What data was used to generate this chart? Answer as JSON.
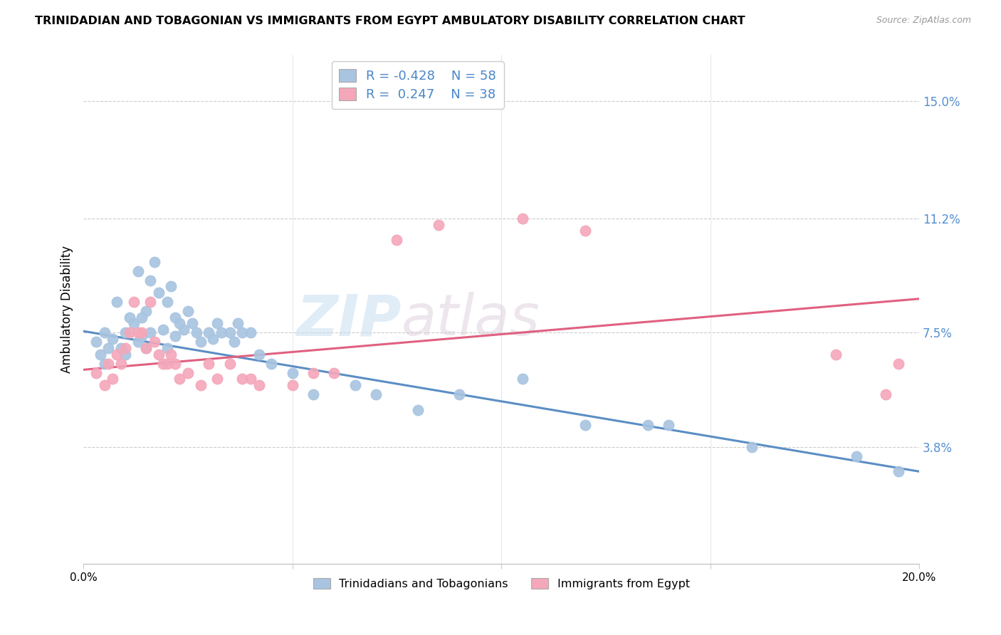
{
  "title": "TRINIDADIAN AND TOBAGONIAN VS IMMIGRANTS FROM EGYPT AMBULATORY DISABILITY CORRELATION CHART",
  "source": "Source: ZipAtlas.com",
  "ylabel": "Ambulatory Disability",
  "yticks": [
    3.8,
    7.5,
    11.2,
    15.0
  ],
  "xlim": [
    0.0,
    20.0
  ],
  "ylim": [
    0.0,
    16.5
  ],
  "legend_blue_R": "-0.428",
  "legend_blue_N": "58",
  "legend_pink_R": "0.247",
  "legend_pink_N": "38",
  "blue_color": "#a8c4e0",
  "pink_color": "#f4a7b9",
  "blue_line_color": "#5b8ec4",
  "pink_line_color": "#e06080",
  "watermark_zip": "ZIP",
  "watermark_atlas": "atlas",
  "blue_line_x0": 0.0,
  "blue_line_y0": 7.55,
  "blue_line_x1": 20.0,
  "blue_line_y1": 3.0,
  "pink_line_x0": 0.0,
  "pink_line_y0": 6.3,
  "pink_line_x1": 20.0,
  "pink_line_y1": 8.6,
  "blue_scatter_x": [
    0.3,
    0.4,
    0.5,
    0.5,
    0.6,
    0.7,
    0.8,
    0.9,
    1.0,
    1.0,
    1.1,
    1.2,
    1.3,
    1.3,
    1.4,
    1.4,
    1.5,
    1.5,
    1.6,
    1.6,
    1.7,
    1.8,
    1.9,
    2.0,
    2.0,
    2.1,
    2.2,
    2.2,
    2.3,
    2.4,
    2.5,
    2.6,
    2.7,
    2.8,
    3.0,
    3.1,
    3.2,
    3.3,
    3.5,
    3.6,
    3.7,
    3.8,
    4.0,
    4.2,
    4.5,
    5.0,
    5.5,
    6.5,
    7.0,
    8.0,
    9.0,
    10.5,
    12.0,
    13.5,
    14.0,
    16.0,
    18.5,
    19.5
  ],
  "blue_scatter_y": [
    7.2,
    6.8,
    7.5,
    6.5,
    7.0,
    7.3,
    8.5,
    7.0,
    7.5,
    6.8,
    8.0,
    7.8,
    7.2,
    9.5,
    7.4,
    8.0,
    7.0,
    8.2,
    9.2,
    7.5,
    9.8,
    8.8,
    7.6,
    7.0,
    8.5,
    9.0,
    7.4,
    8.0,
    7.8,
    7.6,
    8.2,
    7.8,
    7.5,
    7.2,
    7.5,
    7.3,
    7.8,
    7.5,
    7.5,
    7.2,
    7.8,
    7.5,
    7.5,
    6.8,
    6.5,
    6.2,
    5.5,
    5.8,
    5.5,
    5.0,
    5.5,
    6.0,
    4.5,
    4.5,
    4.5,
    3.8,
    3.5,
    3.0
  ],
  "pink_scatter_x": [
    0.3,
    0.5,
    0.6,
    0.7,
    0.8,
    0.9,
    1.0,
    1.1,
    1.2,
    1.3,
    1.4,
    1.5,
    1.6,
    1.7,
    1.8,
    1.9,
    2.0,
    2.1,
    2.2,
    2.3,
    2.5,
    2.8,
    3.0,
    3.2,
    3.5,
    3.8,
    4.0,
    4.2,
    5.0,
    5.5,
    6.0,
    7.5,
    8.5,
    10.5,
    12.0,
    18.0,
    19.2,
    19.5
  ],
  "pink_scatter_y": [
    6.2,
    5.8,
    6.5,
    6.0,
    6.8,
    6.5,
    7.0,
    7.5,
    8.5,
    7.5,
    7.5,
    7.0,
    8.5,
    7.2,
    6.8,
    6.5,
    6.5,
    6.8,
    6.5,
    6.0,
    6.2,
    5.8,
    6.5,
    6.0,
    6.5,
    6.0,
    6.0,
    5.8,
    5.8,
    6.2,
    6.2,
    10.5,
    11.0,
    11.2,
    10.8,
    6.8,
    5.5,
    6.5
  ]
}
